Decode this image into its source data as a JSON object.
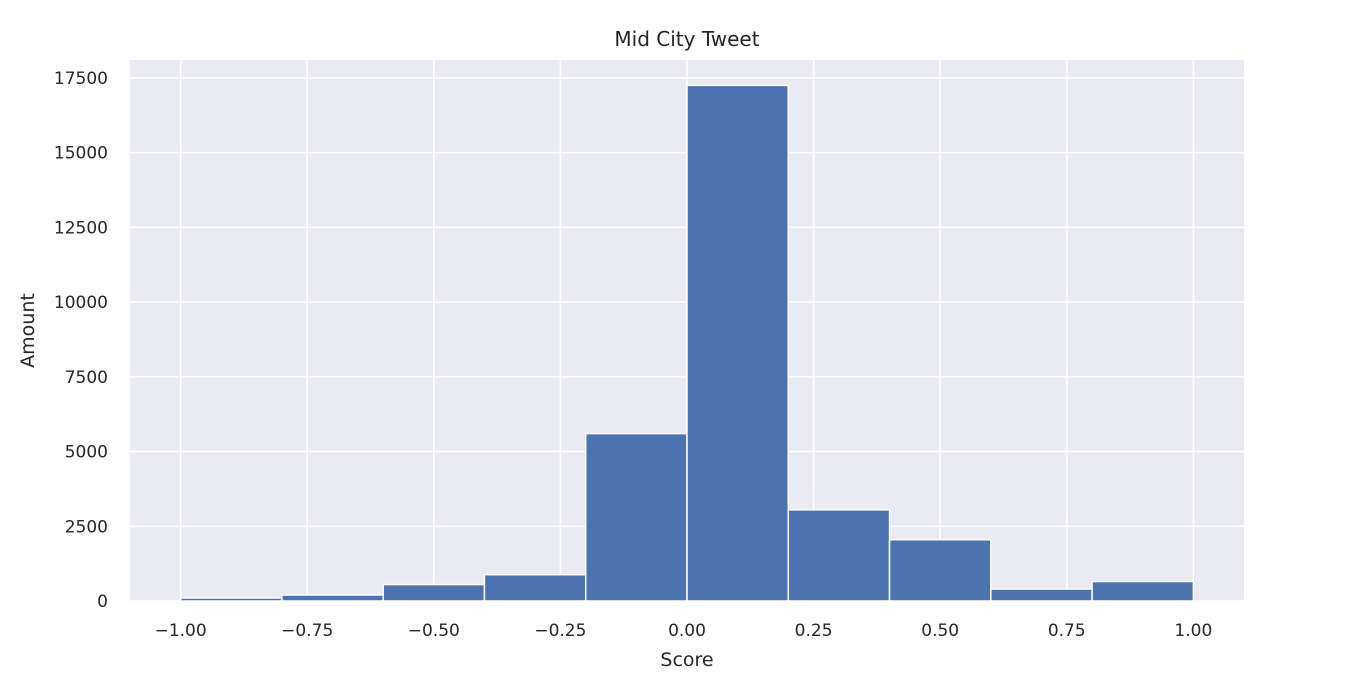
{
  "chart_data": {
    "type": "bar",
    "title": "Mid City Tweet",
    "xlabel": "Score",
    "ylabel": "Amount",
    "bin_edges": [
      -1.0,
      -0.8,
      -0.6,
      -0.4,
      -0.2,
      0.0,
      0.2,
      0.4,
      0.6,
      0.8,
      1.0
    ],
    "values": [
      100,
      200,
      550,
      880,
      5600,
      17250,
      3050,
      2050,
      400,
      650
    ],
    "xlim": [
      -1.1,
      1.1
    ],
    "ylim": [
      0,
      18100
    ],
    "x_ticks": [
      -1.0,
      -0.75,
      -0.5,
      -0.25,
      0.0,
      0.25,
      0.5,
      0.75,
      1.0
    ],
    "x_tick_labels": [
      "−1.00",
      "−0.75",
      "−0.50",
      "−0.25",
      "0.00",
      "0.25",
      "0.50",
      "0.75",
      "1.00"
    ],
    "y_ticks": [
      0,
      2500,
      5000,
      7500,
      10000,
      12500,
      15000,
      17500
    ],
    "y_tick_labels": [
      "0",
      "2500",
      "5000",
      "7500",
      "10000",
      "12500",
      "15000",
      "17500"
    ],
    "grid": true,
    "legend": "none",
    "colors": {
      "bar": "#4C72B0",
      "plot_background": "#EAEAF2",
      "grid": "#FFFFFF",
      "text": "#262626"
    }
  }
}
